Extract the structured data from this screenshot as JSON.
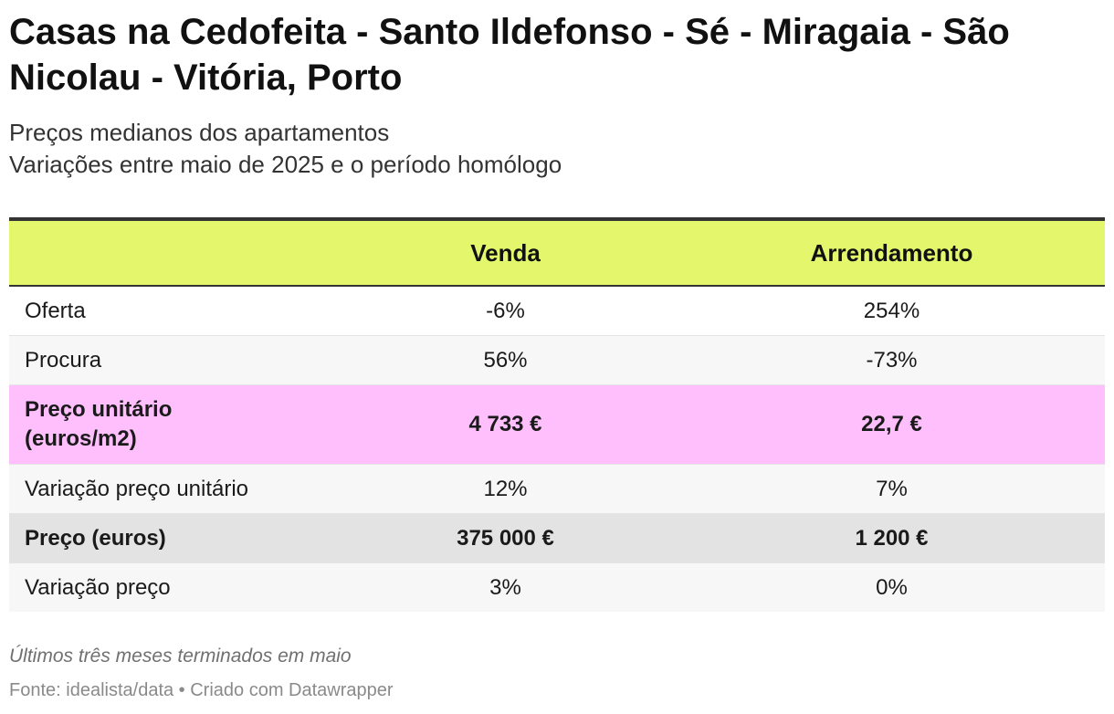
{
  "title": "Casas na Cedofeita - Santo Ildefonso - Sé - Miragaia - São Nicolau - Vitória, Porto",
  "subtitle_lines": [
    "Preços medianos dos apartamentos",
    "Variações entre maio de 2025 e o período homólogo"
  ],
  "chart_data": {
    "type": "table",
    "columns": [
      "",
      "Venda",
      "Arrendamento"
    ],
    "rows": [
      {
        "label": "Oferta",
        "venda": "-6%",
        "arrendamento": "254%"
      },
      {
        "label": "Procura",
        "venda": "56%",
        "arrendamento": "-73%"
      },
      {
        "label_lines": [
          "Preço unitário",
          "(euros/m2)"
        ],
        "venda": "4 733 €",
        "arrendamento": "22,7 €"
      },
      {
        "label": "Variação preço unitário",
        "venda": "12%",
        "arrendamento": "7%"
      },
      {
        "label": "Preço (euros)",
        "venda": "375 000 €",
        "arrendamento": "1 200 €"
      },
      {
        "label": "Variação preço",
        "venda": "3%",
        "arrendamento": "0%"
      }
    ]
  },
  "colors": {
    "header_bg": "#e4f76c",
    "highlight_pink": "#ffbffd",
    "highlight_grey": "#e3e3e3",
    "alt_row": "#f7f7f7",
    "rule": "#333333"
  },
  "notes": "Últimos três meses terminados em maio",
  "source": "Fonte: idealista/data • Criado com Datawrapper"
}
